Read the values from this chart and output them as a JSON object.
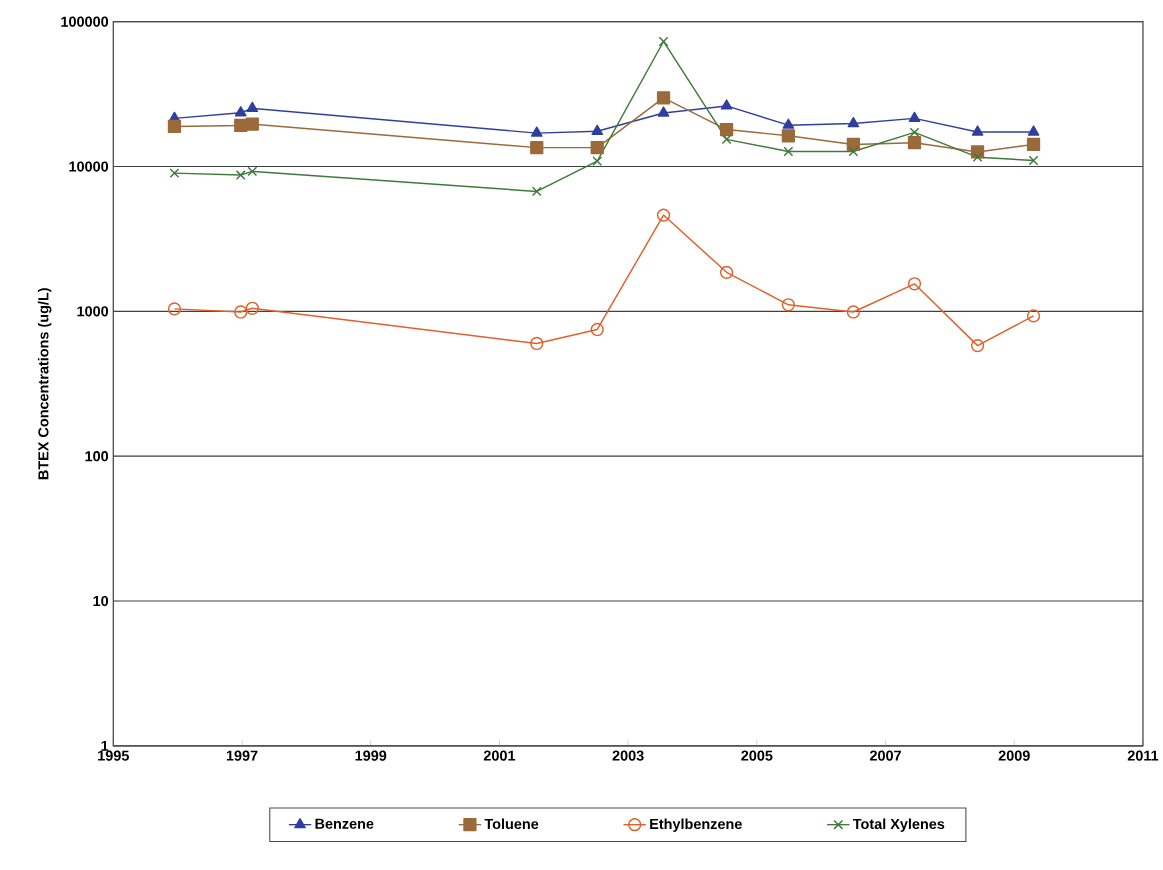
{
  "chart_data": {
    "type": "line",
    "ylabel": "BTEX Concentrations (ug/L)",
    "x": [
      1995.95,
      1996.98,
      1997.16,
      2001.58,
      2002.52,
      2003.55,
      2004.53,
      2005.49,
      2006.5,
      2007.45,
      2008.43,
      2009.3
    ],
    "series": [
      {
        "name": "Benzene",
        "color": "#2f3f9e",
        "marker": "triangle",
        "values": [
          21500,
          23500,
          25200,
          17000,
          17500,
          23400,
          26200,
          19300,
          19800,
          21500,
          17300,
          17300
        ]
      },
      {
        "name": "Toluene",
        "color": "#9b6a3a",
        "marker": "square",
        "values": [
          18900,
          19200,
          19600,
          13500,
          13500,
          29800,
          18000,
          16300,
          14200,
          14600,
          12600,
          14200
        ]
      },
      {
        "name": "Ethylbenzene",
        "color": "#e0602a",
        "marker": "circle",
        "values": [
          1040,
          990,
          1050,
          600,
          750,
          4620,
          1860,
          1110,
          990,
          1550,
          580,
          930
        ]
      },
      {
        "name": "Total Xylenes",
        "color": "#3f7a3a",
        "marker": "cross",
        "values": [
          9000,
          8730,
          9250,
          6730,
          10900,
          73000,
          15400,
          12700,
          12700,
          17200,
          11600,
          11000
        ]
      }
    ],
    "xlim": [
      1995,
      2011
    ],
    "xticks": [
      1995,
      1997,
      1999,
      2001,
      2003,
      2005,
      2007,
      2009,
      2011
    ],
    "ylim": [
      1,
      100000
    ],
    "yticks": [
      1,
      10,
      100,
      1000,
      10000,
      100000
    ],
    "log": true,
    "grid": "y",
    "legend": "bottom",
    "line_style": "solid"
  }
}
